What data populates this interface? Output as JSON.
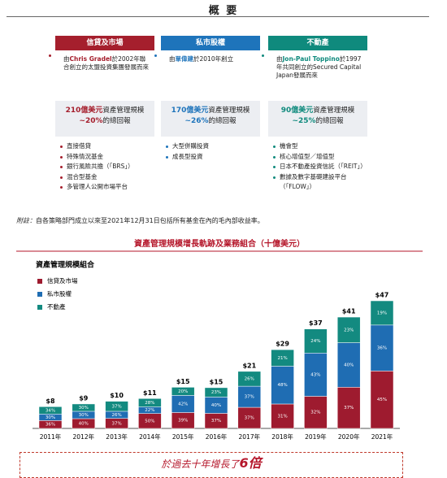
{
  "header": {
    "title": "概 要"
  },
  "columns": [
    {
      "name": "信貸及市場",
      "color": "#a51f2d",
      "intro_pre": "由",
      "intro_name": "Chris Gradel",
      "intro_post": "於2002年聯合創立的太盟投資集團發展而來",
      "amount": "210億美元",
      "amount_text": "資產管理規模",
      "return": "~20%",
      "return_text": "的總回報",
      "bullets": [
        "直接借貸",
        "特殊情況基金",
        "銀行風險共擔（「BRS」）",
        "混合型基金",
        "多管理人公開市場平台"
      ]
    },
    {
      "name": "私市股權",
      "color": "#1e74bb",
      "intro_pre": "由",
      "intro_name": "單偉建",
      "intro_post": "於2010年創立",
      "amount": "170億美元",
      "amount_text": "資產管理規模",
      "return": "~26%",
      "return_text": "的總回報",
      "bullets": [
        "大型併購投資",
        "成長型投資"
      ]
    },
    {
      "name": "不動產",
      "color": "#0f8a7d",
      "intro_pre": "由",
      "intro_name": "Jon-Paul Toppino",
      "intro_post": "於1997年共同創立的Secured Capital Japan發展而來",
      "amount": "90億美元",
      "amount_text": "資產管理規模",
      "return": "~25%",
      "return_text": "的總回報",
      "bullets": [
        "機會型",
        "核心增值型／增值型",
        "日本不動產投資信託（「REIT」）",
        "數據及數字基礎建設平台（「FLOW」）"
      ]
    }
  ],
  "footnote": {
    "label": "附註：",
    "text": "自各策略部門成立以來至2021年12月31日包括所有基金在內的毛內部收益率。"
  },
  "chart_data": {
    "type": "stacked_bar",
    "title": "資產管理規模增長軌跡及業務組合（十億美元）",
    "subtitle": "資產管理規模組合",
    "categories": [
      "2011年",
      "2012年",
      "2013年",
      "2014年",
      "2015年",
      "2016年",
      "2017年",
      "2018年",
      "2019年",
      "2020年",
      "2021年"
    ],
    "totals": {
      "values": [
        8,
        9,
        10,
        11,
        15,
        15,
        21,
        29,
        37,
        41,
        47
      ],
      "value_labels": [
        "$8",
        "$9",
        "$10",
        "$11",
        "$15",
        "$15",
        "$21",
        "$29",
        "$37",
        "$41",
        "$47"
      ]
    },
    "series": [
      {
        "name": "信貸及市場",
        "color": "#9e1b2f",
        "values": [
          36,
          40,
          37,
          50,
          39,
          37,
          37,
          31,
          32,
          37,
          45
        ],
        "value_labels": [
          "36%",
          "40%",
          "37%",
          "50%",
          "39%",
          "37%",
          "37%",
          "31%",
          "32%",
          "37%",
          "45%"
        ]
      },
      {
        "name": "私市股權",
        "color": "#1f6db3",
        "values": [
          30,
          30,
          26,
          22,
          42,
          40,
          37,
          48,
          43,
          40,
          36
        ],
        "value_labels": [
          "30%",
          "30%",
          "26%",
          "22%",
          "42%",
          "40%",
          "37%",
          "48%",
          "43%",
          "40%",
          "36%"
        ]
      },
      {
        "name": "不動產",
        "color": "#138a80",
        "values": [
          34,
          30,
          37,
          28,
          20,
          23,
          26,
          21,
          24,
          23,
          19
        ],
        "value_labels": [
          "34%",
          "30%",
          "37%",
          "28%",
          "20%",
          "23%",
          "26%",
          "21%",
          "24%",
          "23%",
          "19%"
        ]
      }
    ]
  },
  "callout": {
    "text": "於過去十年增長了",
    "emphasis": "6倍"
  }
}
